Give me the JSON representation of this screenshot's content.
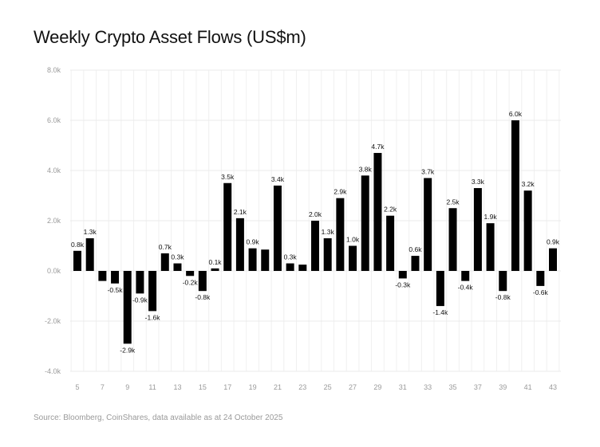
{
  "chart_data": {
    "type": "bar",
    "title": "Weekly Crypto Asset Flows (US$m)",
    "source": "Source: Bloomberg, CoinShares, data available as at 24 October 2025",
    "categories": [
      5,
      6,
      7,
      8,
      9,
      10,
      11,
      12,
      13,
      14,
      15,
      16,
      17,
      18,
      19,
      20,
      21,
      22,
      23,
      24,
      25,
      26,
      27,
      28,
      29,
      30,
      31,
      32,
      33,
      34,
      35,
      36,
      37,
      38,
      39,
      40,
      41,
      42,
      43
    ],
    "values": [
      0.8,
      1.3,
      -0.4,
      -0.5,
      -2.9,
      -0.9,
      -1.6,
      0.7,
      0.3,
      -0.2,
      -0.8,
      0.1,
      3.5,
      2.1,
      0.9,
      0.85,
      3.4,
      0.3,
      0.25,
      2.0,
      1.3,
      2.9,
      1.0,
      3.8,
      4.7,
      2.2,
      -0.3,
      0.6,
      3.7,
      -1.4,
      2.5,
      -0.4,
      3.3,
      1.9,
      -0.8,
      6.0,
      3.2,
      -0.6,
      0.9
    ],
    "data_labels": [
      "0.8k",
      "1.3k",
      null,
      "-0.5k",
      "-2.9k",
      "-0.9k",
      "-1.6k",
      "0.7k",
      "0.3k",
      "-0.2k",
      "-0.8k",
      "0.1k",
      "3.5k",
      "2.1k",
      "0.9k",
      null,
      "3.4k",
      "0.3k",
      null,
      "2.0k",
      "1.3k",
      "2.9k",
      "1.0k",
      "3.8k",
      "4.7k",
      "2.2k",
      "-0.3k",
      "0.6k",
      "3.7k",
      "-1.4k",
      "2.5k",
      "-0.4k",
      "3.3k",
      "1.9k",
      "-0.8k",
      "6.0k",
      "3.2k",
      "-0.6k",
      "0.9k"
    ],
    "value_unit": "thousand US$m",
    "ylim": [
      -4.0,
      8.0
    ],
    "yticks": [
      "-4.0k",
      "-2.0k",
      "0.0k",
      "2.0k",
      "4.0k",
      "6.0k",
      "8.0k"
    ],
    "xtick_labels": [
      "5",
      "7",
      "9",
      "11",
      "13",
      "15",
      "17",
      "19",
      "21",
      "23",
      "25",
      "27",
      "29",
      "31",
      "33",
      "35",
      "37",
      "39",
      "41",
      "43"
    ],
    "grid": true,
    "bar_color": "#000000",
    "xlabel": "",
    "ylabel": ""
  }
}
